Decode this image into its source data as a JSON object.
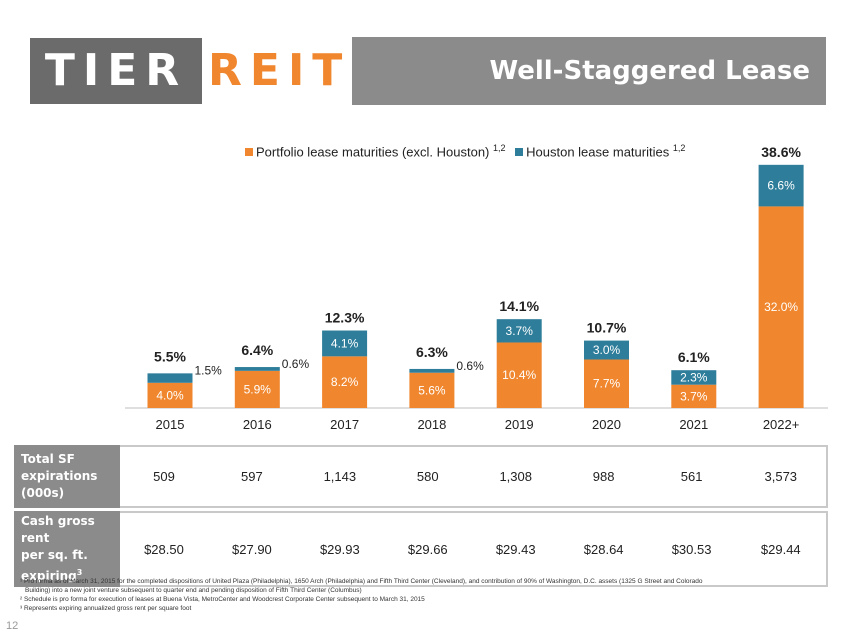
{
  "logo": {
    "part1": "TIER",
    "part2": "REIT"
  },
  "title": "Well-Staggered Lease Maturities",
  "legend": [
    {
      "label": "Portfolio lease maturities (excl. Houston)",
      "sup": "1,2",
      "color": "#f0862d"
    },
    {
      "label": "Houston lease maturities",
      "sup": "1,2",
      "color": "#2e7d9a"
    }
  ],
  "chart_data": {
    "type": "bar",
    "stacked": true,
    "categories": [
      "2015",
      "2016",
      "2017",
      "2018",
      "2019",
      "2020",
      "2021",
      "2022+"
    ],
    "series": [
      {
        "name": "Portfolio lease maturities (excl. Houston)",
        "values": [
          4.0,
          5.9,
          8.2,
          5.6,
          10.4,
          7.7,
          3.7,
          32.0
        ],
        "labels": [
          "4.0%",
          "5.9%",
          "8.2%",
          "5.6%",
          "10.4%",
          "7.7%",
          "3.7%",
          "32.0%"
        ],
        "color": "#f0862d"
      },
      {
        "name": "Houston lease maturities",
        "values": [
          1.5,
          0.6,
          4.1,
          0.6,
          3.7,
          3.0,
          2.3,
          6.6
        ],
        "labels": [
          "1.5%",
          "0.6%",
          "4.1%",
          "0.6%",
          "3.7%",
          "3.0%",
          "2.3%",
          "6.6%"
        ],
        "color": "#2e7d9a"
      }
    ],
    "totals": [
      "5.5%",
      "6.4%",
      "12.3%",
      "6.3%",
      "14.1%",
      "10.7%",
      "6.1%",
      "38.6%"
    ],
    "ylim": [
      0,
      40
    ],
    "legend_position": "top"
  },
  "table": {
    "rows": [
      {
        "label_lines": [
          "Total SF",
          "expirations",
          "(000s)"
        ],
        "label_sup": "",
        "values": [
          "509",
          "597",
          "1,143",
          "580",
          "1,308",
          "988",
          "561",
          "3,573"
        ]
      },
      {
        "label_lines": [
          "Cash gross rent",
          "per sq. ft.",
          "expiring"
        ],
        "label_sup": "3",
        "values": [
          "$28.50",
          "$27.90",
          "$29.93",
          "$29.66",
          "$29.43",
          "$28.64",
          "$30.53",
          "$29.44"
        ]
      }
    ]
  },
  "footnotes": {
    "f1_line1": "¹ Pro forma as of March 31, 2015 for the completed dispositions of United Plaza (Philadelphia), 1650 Arch (Philadelphia) and Fifth Third Center (Cleveland), and contribution of 90% of Washington, D.C. assets (1325 G Street and Colorado",
    "f1_line2": "Building) into a new joint venture subsequent to quarter end and pending disposition of Fifth Third Center (Columbus)",
    "f2": "² Schedule is pro forma for execution of leases at Buena Vista, MetroCenter and Woodcrest Corporate Center subsequent to March 31, 2015",
    "f3": "³ Represents expiring annualized gross rent per square foot"
  },
  "page_number": "12"
}
